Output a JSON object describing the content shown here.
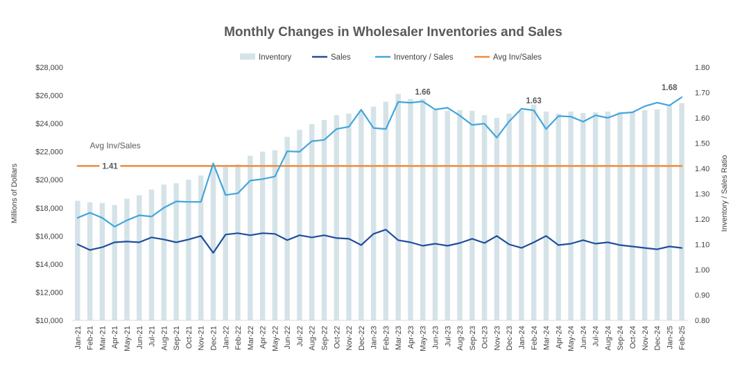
{
  "chart_data": {
    "type": "bar-line combo",
    "title": "Monthly Changes in Wholesaler Inventories and Sales",
    "ylabel_left": "Millions of Dollars",
    "ylabel_right": "Inventory / Sales Ratio",
    "ylim_left": [
      10000,
      28000
    ],
    "ylim_right": [
      0.8,
      1.8
    ],
    "yticks_left": [
      "$10,000",
      "$12,000",
      "$14,000",
      "$16,000",
      "$18,000",
      "$20,000",
      "$22,000",
      "$24,000",
      "$26,000",
      "$28,000"
    ],
    "yticks_right": [
      "0.80",
      "0.90",
      "1.00",
      "1.10",
      "1.20",
      "1.30",
      "1.40",
      "1.50",
      "1.60",
      "1.70",
      "1.80"
    ],
    "grid": false,
    "legend_position": "top",
    "legend": [
      "Inventory",
      "Sales",
      "Inventory / Sales",
      "Avg Inv/Sales"
    ],
    "categories": [
      "Jan-21",
      "Feb-21",
      "Mar-21",
      "Apr-21",
      "May-21",
      "Jun-21",
      "Jul-21",
      "Aug-21",
      "Sep-21",
      "Oct-21",
      "Nov-21",
      "Dec-21",
      "Jan-22",
      "Feb-22",
      "Mar-22",
      "Apr-22",
      "May-22",
      "Jun-22",
      "Jul-22",
      "Aug-22",
      "Sep-22",
      "Oct-22",
      "Nov-22",
      "Dec-22",
      "Jan-23",
      "Feb-23",
      "Mar-23",
      "Apr-23",
      "May-23",
      "Jun-23",
      "Jul-23",
      "Aug-23",
      "Sep-23",
      "Oct-23",
      "Nov-23",
      "Dec-23",
      "Jan-24",
      "Feb-24",
      "Mar-24",
      "Apr-24",
      "May-24",
      "Jun-24",
      "Jul-24",
      "Aug-24",
      "Sep-24",
      "Oct-24",
      "Nov-24",
      "Dec-24",
      "Jan-25",
      "Feb-25"
    ],
    "series": [
      {
        "name": "Inventory",
        "type": "bar",
        "axis": "left",
        "color": "#d5e3e8",
        "values": [
          18500,
          18400,
          18350,
          18200,
          18650,
          18900,
          19300,
          19650,
          19750,
          20000,
          20300,
          21050,
          20900,
          21100,
          21700,
          22000,
          22100,
          23050,
          23550,
          23950,
          24250,
          24600,
          24700,
          24900,
          25200,
          25550,
          26100,
          25750,
          25750,
          24950,
          24900,
          24950,
          24900,
          24600,
          24400,
          24700,
          24900,
          25350,
          24850,
          24700,
          24850,
          24750,
          24800,
          24850,
          24800,
          24850,
          24950,
          25000,
          25350,
          25450
        ]
      },
      {
        "name": "Sales",
        "type": "line",
        "axis": "left",
        "color": "#1f4e9c",
        "values": [
          15400,
          15000,
          15200,
          15550,
          15600,
          15550,
          15900,
          15750,
          15550,
          15750,
          16000,
          14800,
          16100,
          16200,
          16050,
          16200,
          16150,
          15700,
          16050,
          15900,
          16050,
          15850,
          15800,
          15350,
          16150,
          16450,
          15700,
          15550,
          15300,
          15450,
          15300,
          15500,
          15800,
          15500,
          16000,
          15400,
          15150,
          15550,
          16000,
          15350,
          15450,
          15700,
          15450,
          15550,
          15350,
          15250,
          15150,
          15050,
          15250,
          15150
        ]
      },
      {
        "name": "Inventory / Sales",
        "type": "line",
        "axis": "right",
        "color": "#41a5db",
        "values": [
          1.205,
          1.225,
          1.205,
          1.17,
          1.195,
          1.215,
          1.21,
          1.245,
          1.27,
          1.268,
          1.268,
          1.42,
          1.295,
          1.302,
          1.352,
          1.358,
          1.368,
          1.468,
          1.466,
          1.508,
          1.513,
          1.556,
          1.565,
          1.632,
          1.56,
          1.556,
          1.663,
          1.66,
          1.665,
          1.633,
          1.64,
          1.609,
          1.572,
          1.577,
          1.522,
          1.586,
          1.636,
          1.63,
          1.556,
          1.607,
          1.605,
          1.585,
          1.61,
          1.6,
          1.618,
          1.622,
          1.646,
          1.66,
          1.649,
          1.682
        ]
      },
      {
        "name": "Avg Inv/Sales",
        "type": "line",
        "axis": "right",
        "color": "#f08a3a",
        "values": [
          1.41,
          1.41,
          1.41,
          1.41,
          1.41,
          1.41,
          1.41,
          1.41,
          1.41,
          1.41,
          1.41,
          1.41,
          1.41,
          1.41,
          1.41,
          1.41,
          1.41,
          1.41,
          1.41,
          1.41,
          1.41,
          1.41,
          1.41,
          1.41,
          1.41,
          1.41,
          1.41,
          1.41,
          1.41,
          1.41,
          1.41,
          1.41,
          1.41,
          1.41,
          1.41,
          1.41,
          1.41,
          1.41,
          1.41,
          1.41,
          1.41,
          1.41,
          1.41,
          1.41,
          1.41,
          1.41,
          1.41,
          1.41,
          1.41,
          1.41
        ]
      }
    ],
    "annotations": [
      {
        "text": "Avg Inv/Sales",
        "category": "Feb-21",
        "value": 1.49,
        "axis": "right",
        "anchor": "start",
        "weight": "normal"
      },
      {
        "text": "1.41",
        "category": "Mar-21",
        "value": 1.41,
        "axis": "right",
        "anchor": "start",
        "weight": "bold"
      },
      {
        "text": "1.66",
        "category": "May-23",
        "value": 1.665,
        "axis": "right",
        "anchor": "middle",
        "weight": "bold"
      },
      {
        "text": "1.63",
        "category": "Feb-24",
        "value": 1.63,
        "axis": "right",
        "anchor": "middle",
        "weight": "bold"
      },
      {
        "text": "1.68",
        "category": "Jan-25",
        "value": 1.682,
        "axis": "right",
        "anchor": "middle",
        "weight": "bold"
      }
    ]
  }
}
